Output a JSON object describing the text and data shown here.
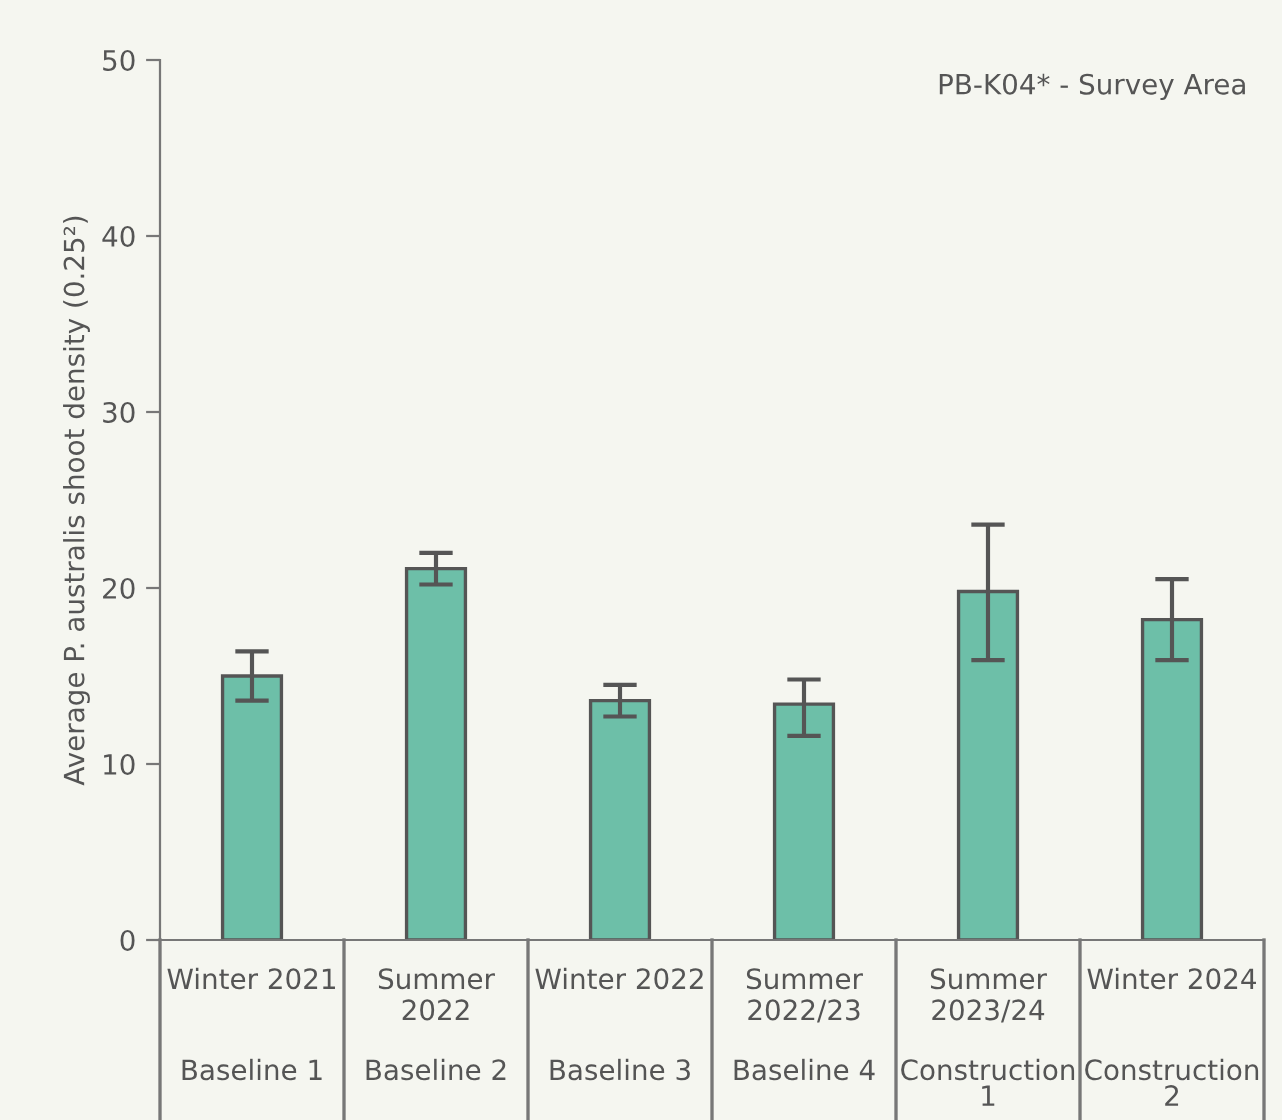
{
  "chart_data": {
    "type": "bar",
    "title": "PB-K04* - Survey Area",
    "ylabel": "Average P. australis shoot density (0.25²)",
    "categories": [
      "Winter 2021",
      "Summer\n2022",
      "Winter 2022",
      "Summer\n2022/23",
      "Summer\n2023/24",
      "Winter 2024"
    ],
    "values": [
      15.0,
      21.1,
      13.6,
      13.4,
      19.8,
      18.2
    ],
    "errors": [
      [
        13.6,
        16.4
      ],
      [
        20.2,
        22.0
      ],
      [
        12.7,
        14.5
      ],
      [
        11.6,
        14.8
      ],
      [
        15.9,
        23.6
      ],
      [
        15.9,
        20.5
      ]
    ],
    "color": "#6dbfa8",
    "annotations": [
      "Baseline 1",
      "Baseline 2",
      "Baseline 3",
      "Baseline 4",
      "Construction\n1",
      "Construction\n2"
    ],
    "ylim": [
      0,
      50
    ],
    "yticks": [
      0,
      10,
      20,
      30,
      40,
      50
    ],
    "grid": false,
    "legend": false
  }
}
